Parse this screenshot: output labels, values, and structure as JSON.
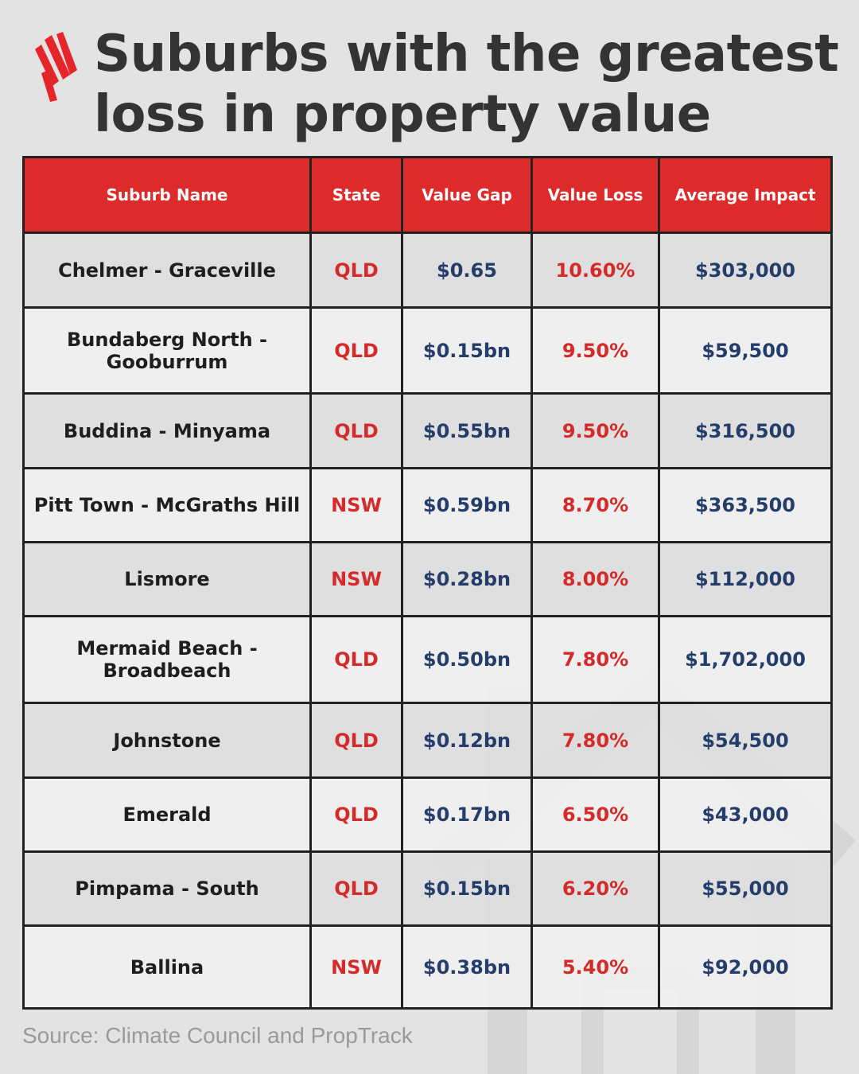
{
  "title_line1": "Suburbs with the greatest",
  "title_line2": "loss in property value",
  "logo_icon": "sbs-logo-icon",
  "background_icon": "house-outline-icon",
  "colors": {
    "header_red": "#dd2a2a",
    "value_red": "#d52a2a",
    "value_navy": "#253d6a",
    "background": "#e3e3e3"
  },
  "table": {
    "headers": {
      "suburb": "Suburb Name",
      "state": "State",
      "gap": "Value Gap",
      "loss": "Value Loss",
      "impact": "Average Impact"
    },
    "rows": [
      {
        "suburb": "Chelmer - Graceville",
        "state": "QLD",
        "gap": "$0.65",
        "loss": "10.60%",
        "impact": "$303,000"
      },
      {
        "suburb": "Bundaberg North - Gooburrum",
        "state": "QLD",
        "gap": "$0.15bn",
        "loss": "9.50%",
        "impact": "$59,500"
      },
      {
        "suburb": "Buddina - Minyama",
        "state": "QLD",
        "gap": "$0.55bn",
        "loss": "9.50%",
        "impact": "$316,500"
      },
      {
        "suburb": "Pitt Town - McGraths Hill",
        "state": "NSW",
        "gap": "$0.59bn",
        "loss": "8.70%",
        "impact": "$363,500"
      },
      {
        "suburb": "Lismore",
        "state": "NSW",
        "gap": "$0.28bn",
        "loss": "8.00%",
        "impact": "$112,000"
      },
      {
        "suburb": "Mermaid Beach - Broadbeach",
        "state": "QLD",
        "gap": "$0.50bn",
        "loss": "7.80%",
        "impact": "$1,702,000"
      },
      {
        "suburb": "Johnstone",
        "state": "QLD",
        "gap": "$0.12bn",
        "loss": "7.80%",
        "impact": "$54,500"
      },
      {
        "suburb": "Emerald",
        "state": "QLD",
        "gap": "$0.17bn",
        "loss": "6.50%",
        "impact": "$43,000"
      },
      {
        "suburb": "Pimpama - South",
        "state": "QLD",
        "gap": "$0.15bn",
        "loss": "6.20%",
        "impact": "$55,000"
      },
      {
        "suburb": "Ballina",
        "state": "NSW",
        "gap": "$0.38bn",
        "loss": "5.40%",
        "impact": "$92,000"
      }
    ]
  },
  "source": "Source: Climate Council and PropTrack"
}
